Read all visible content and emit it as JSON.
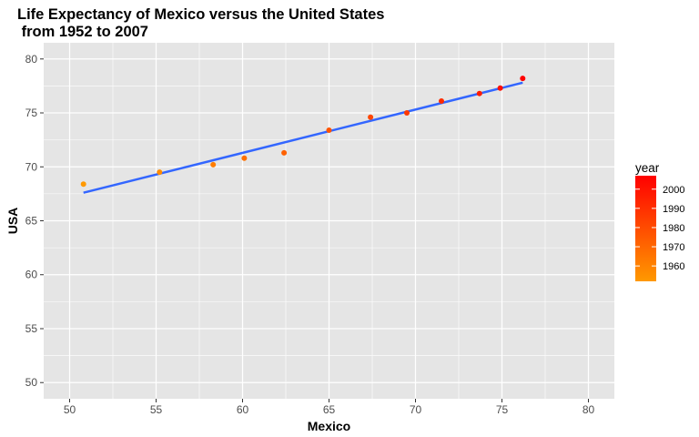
{
  "chart_data": {
    "type": "scatter",
    "title_lines": [
      "Life Expectancy of Mexico versus the United States",
      " from 1952 to 2007"
    ],
    "xlabel": "Mexico",
    "ylabel": "USA",
    "xlim": [
      48.5,
      81.5
    ],
    "ylim": [
      48.5,
      81.5
    ],
    "x_ticks": [
      50,
      55,
      60,
      65,
      70,
      75,
      80
    ],
    "y_ticks": [
      50,
      55,
      60,
      65,
      70,
      75,
      80
    ],
    "grid": true,
    "points": [
      {
        "year": 1952,
        "x": 50.8,
        "y": 68.4
      },
      {
        "year": 1957,
        "x": 55.2,
        "y": 69.5
      },
      {
        "year": 1962,
        "x": 58.3,
        "y": 70.2
      },
      {
        "year": 1967,
        "x": 60.1,
        "y": 70.8
      },
      {
        "year": 1972,
        "x": 62.4,
        "y": 71.3
      },
      {
        "year": 1977,
        "x": 65.0,
        "y": 73.4
      },
      {
        "year": 1982,
        "x": 67.4,
        "y": 74.6
      },
      {
        "year": 1987,
        "x": 69.5,
        "y": 75.0
      },
      {
        "year": 1992,
        "x": 71.5,
        "y": 76.1
      },
      {
        "year": 1997,
        "x": 73.7,
        "y": 76.8
      },
      {
        "year": 2002,
        "x": 74.9,
        "y": 77.3
      },
      {
        "year": 2007,
        "x": 76.2,
        "y": 78.2
      }
    ],
    "trend_line": {
      "x": [
        50.8,
        76.2
      ],
      "y": [
        67.6,
        77.8
      ],
      "color": "#3366FF"
    },
    "legend": {
      "title": "year",
      "position": "right",
      "range": [
        1952,
        2007
      ],
      "ticks": [
        1960,
        1970,
        1980,
        1990,
        2000
      ],
      "color_low": "#FF9900",
      "color_high": "#FF0000"
    },
    "colors": {
      "panel_background": "#E5E5E5",
      "grid": "#FFFFFF"
    }
  }
}
